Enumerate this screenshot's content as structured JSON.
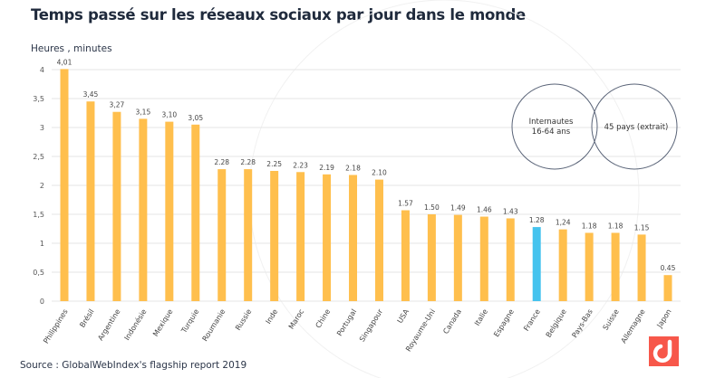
{
  "title": "Temps passé sur les réseaux sociaux par jour dans le monde",
  "source": "Source : GlobalWebIndex's flagship report 2019",
  "chart_data": {
    "type": "bar",
    "ylabel": "Heures , minutes",
    "ylim": [
      0,
      4
    ],
    "yticks": [
      "0",
      "0,5",
      "1",
      "1,5",
      "2",
      "2,5",
      "3",
      "3,5",
      "4"
    ],
    "grid": true,
    "categories": [
      "Philippines",
      "Brésil",
      "Argentine",
      "Indonésie",
      "Mexique",
      "Turquie",
      "Roumanie",
      "Russie",
      "Inde",
      "Maroc",
      "Chine",
      "Portugal",
      "Singapour",
      "USA",
      "Royaume-Uni",
      "Canada",
      "Italie",
      "Espagne",
      "France",
      "Belgique",
      "Pays-Bas",
      "Suisse",
      "Allemagne",
      "Japon"
    ],
    "values": [
      4.01,
      3.45,
      3.27,
      3.15,
      3.1,
      3.05,
      2.28,
      2.28,
      2.25,
      2.23,
      2.19,
      2.18,
      2.1,
      1.57,
      1.5,
      1.49,
      1.46,
      1.43,
      1.28,
      1.24,
      1.18,
      1.18,
      1.15,
      0.45
    ],
    "value_labels": [
      "4,01",
      "3,45",
      "3,27",
      "3,15",
      "3,10",
      "3,05",
      "2.28",
      "2.28",
      "2.25",
      "2.23",
      "2.19",
      "2.18",
      "2.10",
      "1.57",
      "1.50",
      "1.49",
      "1.46",
      "1.43",
      "1.28",
      "1,24",
      "1.18",
      "1.18",
      "1.15",
      "0.45"
    ],
    "highlight": "France",
    "colors": {
      "bar": "#ffbf4d",
      "highlight": "#45c3ee",
      "grid": "#e6e6e6"
    }
  },
  "venn": {
    "left": "Internautes\n16-64 ans",
    "right": "45 pays (extrait)"
  },
  "logo_color": "#f7574a"
}
